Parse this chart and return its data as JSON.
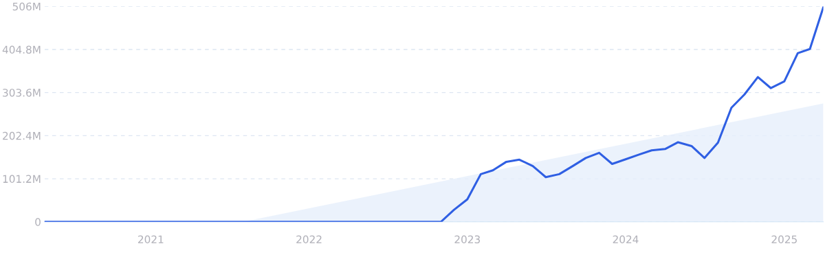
{
  "chart_data": {
    "type": "line",
    "xlim": [
      "2020-05",
      "2025-04"
    ],
    "xticks": [
      {
        "value": "2021-01",
        "label": "2021"
      },
      {
        "value": "2022-01",
        "label": "2022"
      },
      {
        "value": "2023-01",
        "label": "2023"
      },
      {
        "value": "2024-01",
        "label": "2024"
      },
      {
        "value": "2025-01",
        "label": "2025"
      }
    ],
    "ylim": [
      0,
      506
    ],
    "yticks": [
      {
        "value": 0,
        "label": "0"
      },
      {
        "value": 101.2,
        "label": "101.2M"
      },
      {
        "value": 202.4,
        "label": "202.4M"
      },
      {
        "value": 303.6,
        "label": "303.6M"
      },
      {
        "value": 404.8,
        "label": "404.8M"
      },
      {
        "value": 506,
        "label": "506M"
      }
    ],
    "grid": "y",
    "series": [
      {
        "type": "area",
        "color": "#e6effb",
        "x": [
          "2021-08",
          "2025-04"
        ],
        "values": [
          0,
          278
        ]
      },
      {
        "color": "#2f5fe3",
        "x": [
          "2020-05",
          "2022-11",
          "2022-12",
          "2023-01",
          "2023-02",
          "2023-03",
          "2023-04",
          "2023-05",
          "2023-06",
          "2023-07",
          "2023-08",
          "2023-09",
          "2023-10",
          "2023-11",
          "2023-12",
          "2024-01",
          "2024-02",
          "2024-03",
          "2024-04",
          "2024-05",
          "2024-06",
          "2024-07",
          "2024-08",
          "2024-09",
          "2024-10",
          "2024-11",
          "2024-12",
          "2025-01",
          "2025-02",
          "2025-03",
          "2025-04"
        ],
        "values": [
          0,
          0,
          28,
          53,
          112,
          121,
          141,
          146,
          131,
          105,
          112,
          131,
          150,
          162,
          136,
          147,
          158,
          168,
          171,
          187,
          178,
          150,
          186,
          268,
          299,
          340,
          314,
          330,
          396,
          406,
          504
        ]
      }
    ]
  }
}
